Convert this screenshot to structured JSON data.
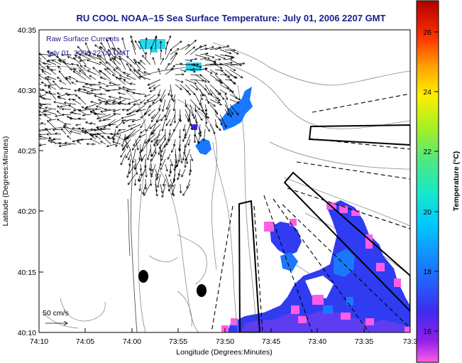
{
  "title": "RU COOL  NOAA–15  Sea Surface Temperature:  July 01, 2006 2207 GMT",
  "annotation": {
    "line1": "Raw Surface Currents",
    "line2": "July 01, 2006 22:00 GMT"
  },
  "scale_label": "50 cm/s",
  "axes": {
    "xlabel": "Longitude (Degrees:Minutes)",
    "ylabel": "Latitude (Degrees:Minutes)",
    "x_ticks": [
      "74:10",
      "74:05",
      "74:00",
      "73:55",
      "73:50",
      "73:45",
      "73:40",
      "73:35",
      "73:3"
    ],
    "y_ticks": [
      "40:35",
      "40:30",
      "40:25",
      "40:20",
      "40:15",
      "40:10"
    ]
  },
  "colorbar": {
    "label": "Temperature (°C)",
    "ticks": [
      "26",
      "24",
      "22",
      "20",
      "18",
      "16"
    ],
    "range": [
      15.2,
      27.3
    ]
  },
  "colors": {
    "title": "#1c1c8e",
    "annotation": "#1c1c8e"
  }
}
